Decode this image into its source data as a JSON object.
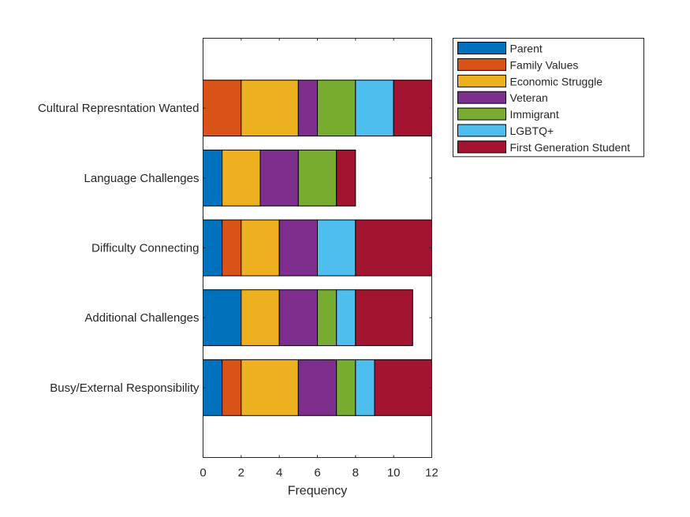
{
  "chart_data": {
    "type": "bar",
    "orientation": "horizontal",
    "stacked": true,
    "categories": [
      "Busy/External Responsibility",
      "Additional Challenges",
      "Difficulty Connecting",
      "Language Challenges",
      "Cultural Represntation Wanted"
    ],
    "series": [
      {
        "name": "Parent",
        "color": "#0072BD",
        "values": [
          1,
          2,
          1,
          1,
          0
        ]
      },
      {
        "name": "Family Values",
        "color": "#D95319",
        "values": [
          1,
          0,
          1,
          0,
          2
        ]
      },
      {
        "name": "Economic Struggle",
        "color": "#EDB120",
        "values": [
          3,
          2,
          2,
          2,
          3
        ]
      },
      {
        "name": "Veteran",
        "color": "#7E2F8E",
        "values": [
          2,
          2,
          2,
          2,
          1
        ]
      },
      {
        "name": "Immigrant",
        "color": "#77AC30",
        "values": [
          1,
          1,
          0,
          2,
          2
        ]
      },
      {
        "name": "LGBTQ+",
        "color": "#4DBEEE",
        "values": [
          1,
          1,
          2,
          0,
          2
        ]
      },
      {
        "name": "First Generation Student",
        "color": "#A2142F",
        "values": [
          3,
          3,
          4,
          1,
          2
        ]
      }
    ],
    "xlabel": "Frequency",
    "ylabel": "",
    "title": "",
    "xlim": [
      0,
      12
    ],
    "xticks": [
      "0",
      "2",
      "4",
      "6",
      "8",
      "10",
      "12"
    ],
    "grid": false,
    "legend_position": "outside-top-right"
  }
}
